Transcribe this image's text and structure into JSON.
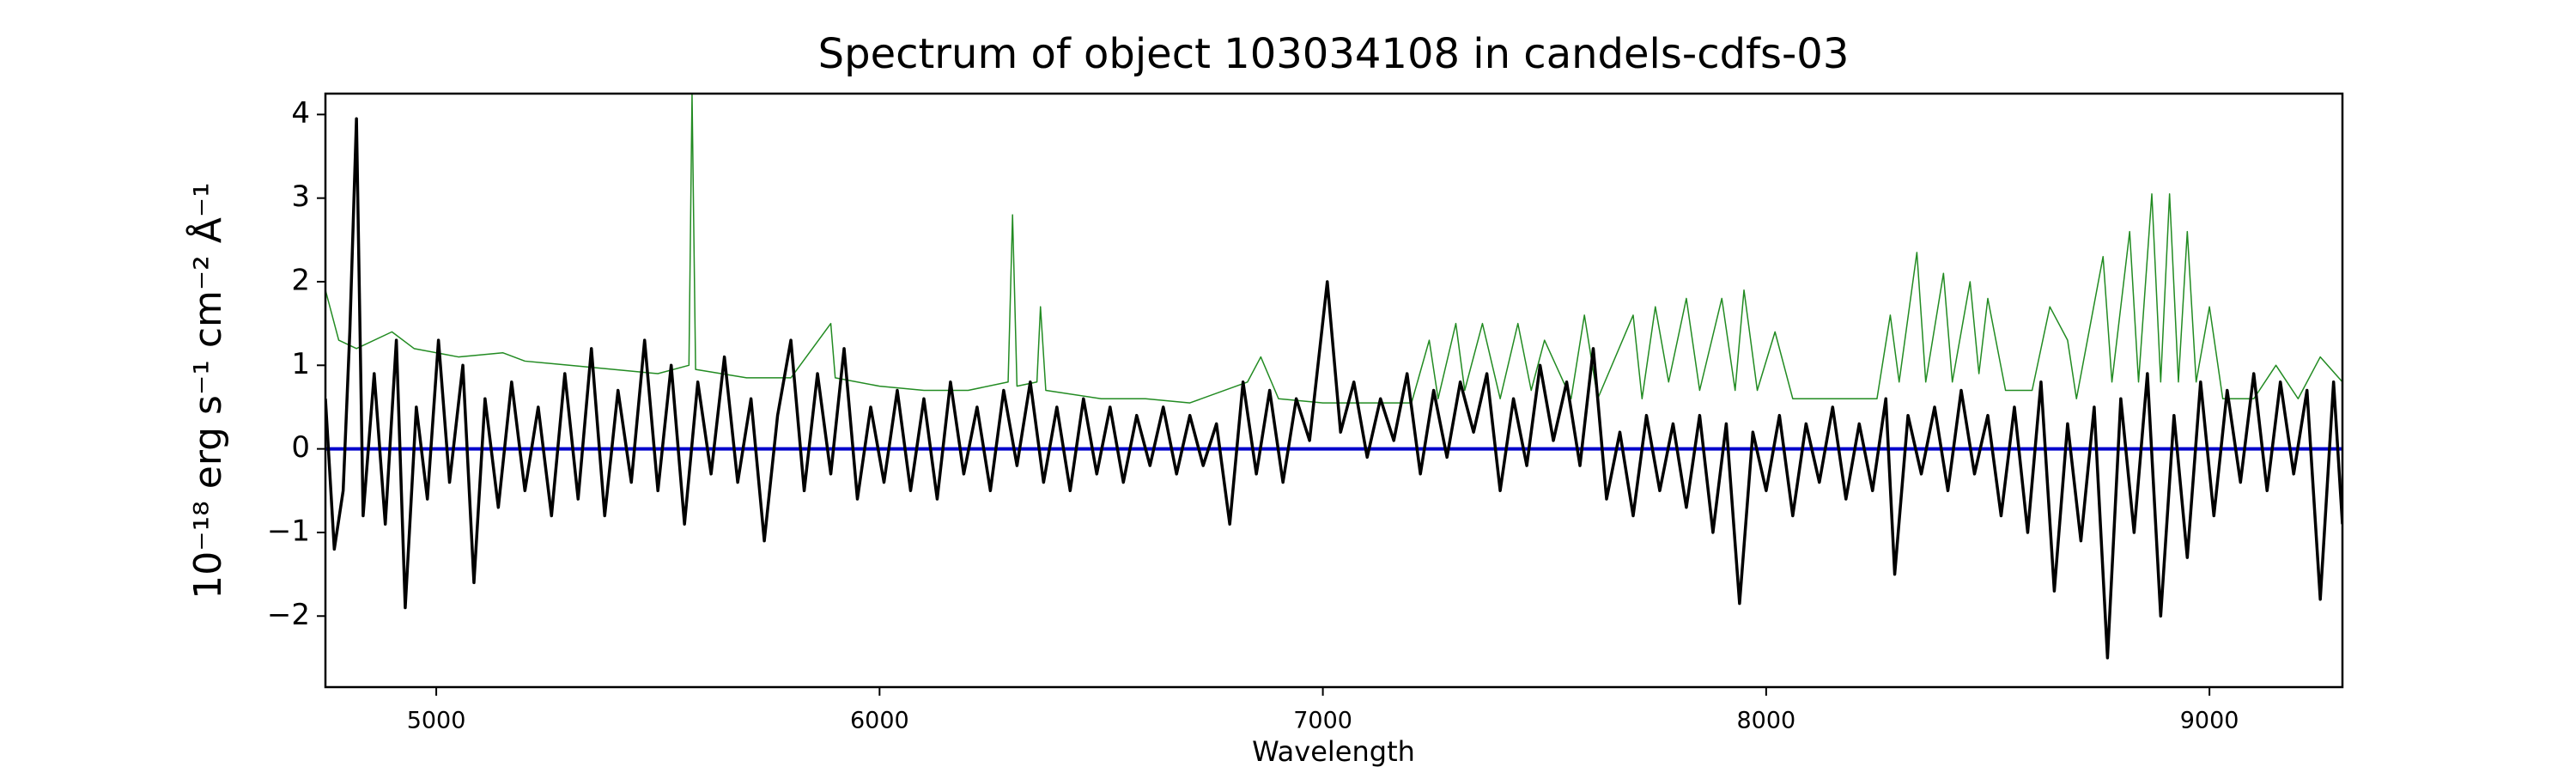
{
  "chart_data": {
    "type": "line",
    "title": "Spectrum of object 103034108 in candels-cdfs-03",
    "xlabel": "Wavelength",
    "ylabel": "10⁻¹⁸ erg s⁻¹ cm⁻² Å⁻¹",
    "xlim": [
      4750,
      9300
    ],
    "ylim": [
      -2.85,
      4.25
    ],
    "xticks": [
      5000,
      6000,
      7000,
      8000,
      9000
    ],
    "yticks": [
      {
        "value": -2,
        "label": "−2"
      },
      {
        "value": -1,
        "label": "−1"
      },
      0,
      1,
      2,
      3,
      4
    ],
    "series": [
      {
        "color": "#228b22",
        "x": [
          4750,
          4780,
          4820,
          4900,
          4950,
          5050,
          5150,
          5200,
          5300,
          5400,
          5500,
          5570,
          5577,
          5585,
          5700,
          5800,
          5890,
          5900,
          6000,
          6100,
          6200,
          6290,
          6300,
          6310,
          6355,
          6363,
          6375,
          6500,
          6600,
          6700,
          6830,
          6860,
          6900,
          7000,
          7100,
          7200,
          7240,
          7260,
          7300,
          7320,
          7360,
          7400,
          7440,
          7470,
          7500,
          7560,
          7590,
          7620,
          7700,
          7720,
          7750,
          7780,
          7820,
          7850,
          7900,
          7930,
          7950,
          7980,
          8020,
          8060,
          8150,
          8250,
          8280,
          8300,
          8340,
          8360,
          8400,
          8420,
          8460,
          8480,
          8500,
          8540,
          8600,
          8640,
          8680,
          8700,
          8760,
          8780,
          8820,
          8840,
          8870,
          8890,
          8910,
          8930,
          8950,
          8970,
          9000,
          9030,
          9100,
          9150,
          9200,
          9250,
          9300
        ],
        "values": [
          1.9,
          1.3,
          1.2,
          1.4,
          1.2,
          1.1,
          1.15,
          1.05,
          1.0,
          0.95,
          0.9,
          1.0,
          4.25,
          0.95,
          0.85,
          0.85,
          1.5,
          0.85,
          0.75,
          0.7,
          0.7,
          0.8,
          2.8,
          0.75,
          0.8,
          1.7,
          0.7,
          0.6,
          0.6,
          0.55,
          0.8,
          1.1,
          0.6,
          0.55,
          0.55,
          0.55,
          1.3,
          0.6,
          1.5,
          0.7,
          1.5,
          0.6,
          1.5,
          0.7,
          1.3,
          0.6,
          1.6,
          0.6,
          1.6,
          0.6,
          1.7,
          0.8,
          1.8,
          0.7,
          1.8,
          0.7,
          1.9,
          0.7,
          1.4,
          0.6,
          0.6,
          0.6,
          1.6,
          0.8,
          2.35,
          0.8,
          2.1,
          0.8,
          2.0,
          0.9,
          1.8,
          0.7,
          0.7,
          1.7,
          1.3,
          0.6,
          2.3,
          0.8,
          2.6,
          0.8,
          3.05,
          0.8,
          3.05,
          0.8,
          2.6,
          0.8,
          1.7,
          0.6,
          0.6,
          1.0,
          0.6,
          1.1,
          0.8
        ],
        "width": 1.5
      },
      {
        "color": "#0000cc",
        "x": [
          4750,
          9300
        ],
        "values": [
          0,
          0
        ],
        "width": 4
      },
      {
        "color": "#000000",
        "x": [
          4750,
          4770,
          4790,
          4805,
          4820,
          4835,
          4860,
          4885,
          4910,
          4930,
          4955,
          4980,
          5005,
          5030,
          5060,
          5085,
          5110,
          5140,
          5170,
          5200,
          5230,
          5260,
          5290,
          5320,
          5350,
          5380,
          5410,
          5440,
          5470,
          5500,
          5530,
          5560,
          5590,
          5620,
          5650,
          5680,
          5710,
          5740,
          5770,
          5800,
          5830,
          5860,
          5890,
          5920,
          5950,
          5980,
          6010,
          6040,
          6070,
          6100,
          6130,
          6160,
          6190,
          6220,
          6250,
          6280,
          6310,
          6340,
          6370,
          6400,
          6430,
          6460,
          6490,
          6520,
          6550,
          6580,
          6610,
          6640,
          6670,
          6700,
          6730,
          6760,
          6790,
          6820,
          6850,
          6880,
          6910,
          6940,
          6970,
          7010,
          7040,
          7070,
          7100,
          7130,
          7160,
          7190,
          7220,
          7250,
          7280,
          7310,
          7340,
          7370,
          7400,
          7430,
          7460,
          7490,
          7520,
          7550,
          7580,
          7610,
          7640,
          7670,
          7700,
          7730,
          7760,
          7790,
          7820,
          7850,
          7880,
          7910,
          7940,
          7970,
          8000,
          8030,
          8060,
          8090,
          8120,
          8150,
          8180,
          8210,
          8240,
          8270,
          8290,
          8320,
          8350,
          8380,
          8410,
          8440,
          8470,
          8500,
          8530,
          8560,
          8590,
          8620,
          8650,
          8680,
          8710,
          8740,
          8770,
          8800,
          8830,
          8860,
          8890,
          8920,
          8950,
          8980,
          9010,
          9040,
          9070,
          9100,
          9130,
          9160,
          9190,
          9220,
          9250,
          9280,
          9300
        ],
        "values": [
          0.6,
          -1.2,
          -0.5,
          1.4,
          3.95,
          -0.8,
          0.9,
          -0.9,
          1.3,
          -1.9,
          0.5,
          -0.6,
          1.3,
          -0.4,
          1.0,
          -1.6,
          0.6,
          -0.7,
          0.8,
          -0.5,
          0.5,
          -0.8,
          0.9,
          -0.6,
          1.2,
          -0.8,
          0.7,
          -0.4,
          1.3,
          -0.5,
          1.0,
          -0.9,
          0.8,
          -0.3,
          1.1,
          -0.4,
          0.6,
          -1.1,
          0.4,
          1.3,
          -0.5,
          0.9,
          -0.3,
          1.2,
          -0.6,
          0.5,
          -0.4,
          0.7,
          -0.5,
          0.6,
          -0.6,
          0.8,
          -0.3,
          0.5,
          -0.5,
          0.7,
          -0.2,
          0.8,
          -0.4,
          0.5,
          -0.5,
          0.6,
          -0.3,
          0.5,
          -0.4,
          0.4,
          -0.2,
          0.5,
          -0.3,
          0.4,
          -0.2,
          0.3,
          -0.9,
          0.8,
          -0.3,
          0.7,
          -0.4,
          0.6,
          0.1,
          2.0,
          0.2,
          0.8,
          -0.1,
          0.6,
          0.1,
          0.9,
          -0.3,
          0.7,
          -0.1,
          0.8,
          0.2,
          0.9,
          -0.5,
          0.6,
          -0.2,
          1.0,
          0.1,
          0.8,
          -0.2,
          1.2,
          -0.6,
          0.2,
          -0.8,
          0.4,
          -0.5,
          0.3,
          -0.7,
          0.4,
          -1.0,
          0.3,
          -1.85,
          0.2,
          -0.5,
          0.4,
          -0.8,
          0.3,
          -0.4,
          0.5,
          -0.6,
          0.3,
          -0.5,
          0.6,
          -1.5,
          0.4,
          -0.3,
          0.5,
          -0.5,
          0.7,
          -0.3,
          0.4,
          -0.8,
          0.5,
          -1.0,
          0.8,
          -1.7,
          0.3,
          -1.1,
          0.5,
          -2.5,
          0.6,
          -1.0,
          0.9,
          -2.0,
          0.4,
          -1.3,
          0.8,
          -0.8,
          0.7,
          -0.4,
          0.9,
          -0.5,
          0.8,
          -0.3,
          0.7,
          -1.8,
          0.8,
          -0.9
        ],
        "width": 3.5
      }
    ]
  }
}
